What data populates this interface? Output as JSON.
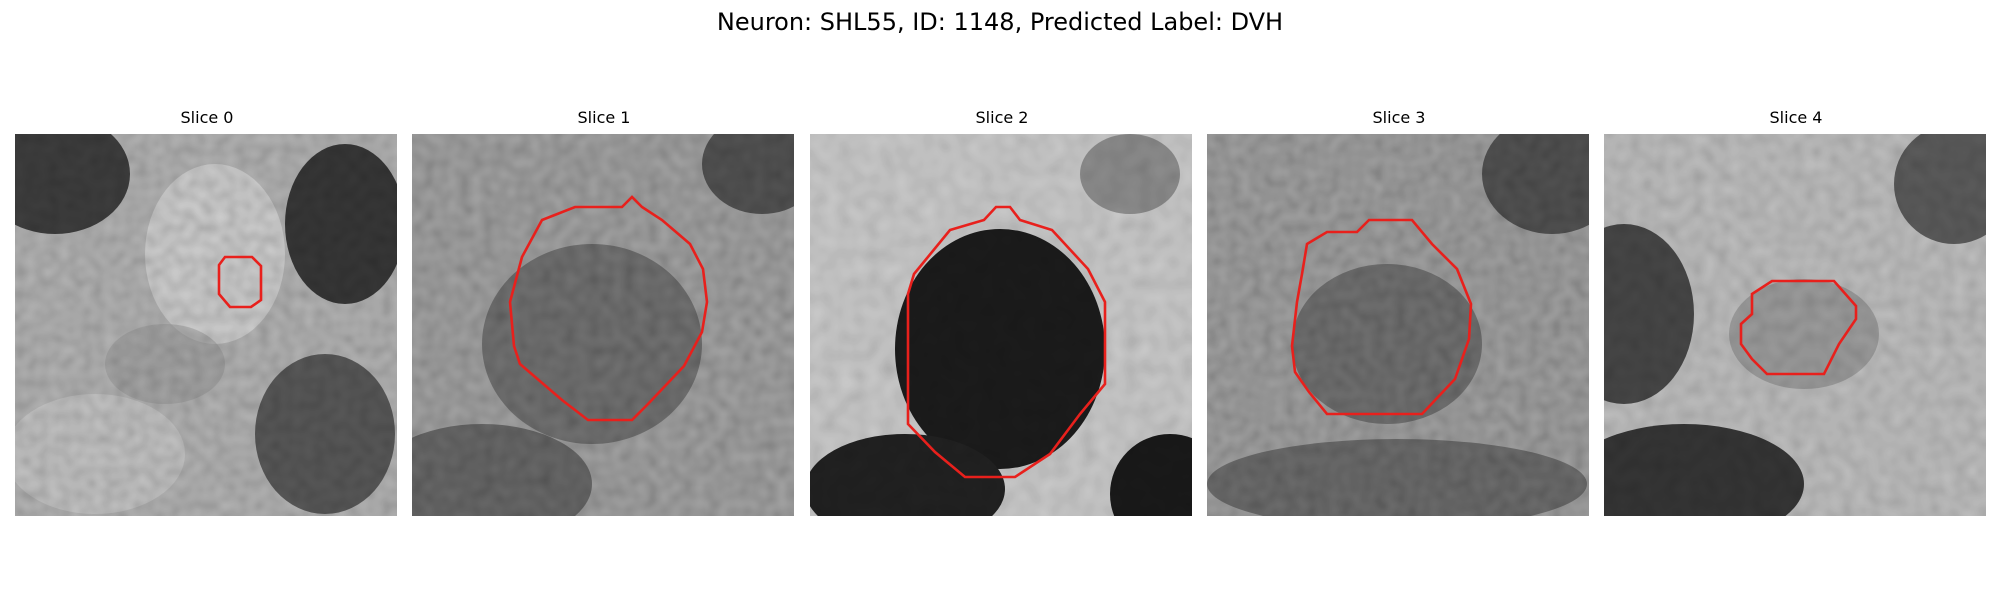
{
  "figure": {
    "title": "Neuron: SHL55, ID: 1148, Predicted Label: DVH",
    "contour_color": "#e8201c",
    "colormap": "grayscale"
  },
  "panels": [
    {
      "title": "Slice 0"
    },
    {
      "title": "Slice 1"
    },
    {
      "title": "Slice 2"
    },
    {
      "title": "Slice 3"
    },
    {
      "title": "Slice 4"
    }
  ]
}
